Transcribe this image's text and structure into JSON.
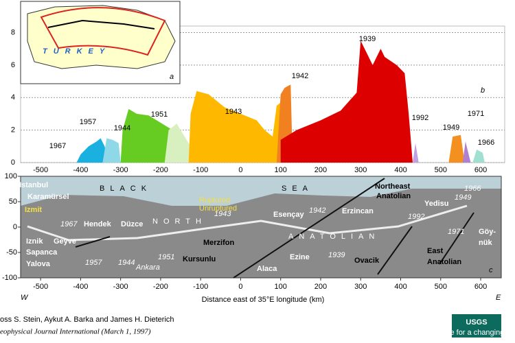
{
  "chart_data": [
    {
      "type": "area",
      "ylim": [
        0,
        8.4
      ],
      "yticks": [
        0,
        2,
        4,
        6,
        8
      ],
      "xlim": [
        -550,
        660
      ],
      "xticks": [
        -500,
        -400,
        -300,
        -200,
        -100,
        0,
        100,
        200,
        300,
        400,
        500,
        600
      ],
      "grid": true,
      "panel_label": "b",
      "series": [
        {
          "name": "1967",
          "color": "#1ab0e0",
          "x": [
            -410,
            -400,
            -380,
            -360,
            -350,
            -340,
            -330
          ],
          "values": [
            0,
            0.5,
            1.0,
            1.3,
            1.5,
            1.0,
            0
          ]
        },
        {
          "name": "1957",
          "color": "#8fd8e8",
          "x": [
            -345,
            -335,
            -320,
            -305,
            -300
          ],
          "values": [
            0,
            1.5,
            1.4,
            1.2,
            0
          ]
        },
        {
          "name": "1944",
          "color": "#66cc22",
          "x": [
            -300,
            -295,
            -280,
            -260,
            -230,
            -210,
            -190,
            -170,
            -140,
            -130
          ],
          "values": [
            0,
            2.0,
            3.3,
            3.0,
            2.9,
            2.6,
            2.3,
            2.0,
            1.3,
            0
          ]
        },
        {
          "name": "1951",
          "color": "#d8f0c0",
          "x": [
            -190,
            -180,
            -160,
            -140,
            -125,
            -120
          ],
          "values": [
            0,
            2.0,
            2.4,
            1.6,
            1.0,
            0
          ]
        },
        {
          "name": "1943",
          "color": "#ffb800",
          "x": [
            -130,
            -125,
            -110,
            -80,
            -40,
            0,
            40,
            60,
            80,
            90,
            100,
            100
          ],
          "values": [
            0,
            3.0,
            4.4,
            4.2,
            3.4,
            3.0,
            2.6,
            2.0,
            1.6,
            3.5,
            3.7,
            0
          ]
        },
        {
          "name": "1942",
          "color": "#f08020",
          "x": [
            90,
            100,
            110,
            125,
            130
          ],
          "values": [
            0,
            4.2,
            4.6,
            4.8,
            0
          ]
        },
        {
          "name": "1939",
          "color": "#dd0000",
          "x": [
            100,
            100,
            140,
            200,
            250,
            290,
            300,
            330,
            350,
            360,
            390,
            410,
            420,
            430
          ],
          "values": [
            0,
            1.4,
            2.0,
            2.6,
            3.2,
            4.3,
            7.5,
            6.0,
            7.0,
            6.5,
            6.0,
            5.5,
            3.0,
            0
          ]
        },
        {
          "name": "1992",
          "color": "#c0a0e0",
          "x": [
            430,
            437,
            445
          ],
          "values": [
            0,
            1.2,
            0
          ]
        },
        {
          "name": "1949",
          "color": "#f39020",
          "x": [
            520,
            530,
            550,
            560
          ],
          "values": [
            0,
            1.6,
            1.7,
            0
          ]
        },
        {
          "name": "1971",
          "color": "#b080d0",
          "x": [
            555,
            562,
            575
          ],
          "values": [
            0,
            1.3,
            0
          ]
        },
        {
          "name": "1966",
          "color": "#a0e0d0",
          "x": [
            580,
            590,
            605,
            610
          ],
          "values": [
            0,
            0.8,
            0.6,
            0
          ]
        }
      ]
    },
    {
      "type": "map",
      "xlim": [
        -550,
        660
      ],
      "ylim": [
        -100,
        100
      ],
      "yticks": [
        100,
        50,
        0,
        -50,
        -100
      ],
      "xticks": [
        -500,
        -400,
        -300,
        -200,
        -100,
        0,
        100,
        200,
        300,
        400,
        500,
        600
      ],
      "xlabel": "Distance east of 35°E longitude (km)",
      "west": "W",
      "east": "E",
      "labels": [
        "Istanbul",
        "Karamürsel",
        "Izmit",
        "1967",
        "Hendek",
        "Düzce",
        "NORTH",
        "1943",
        "Esençay",
        "1942",
        "Erzincan",
        "1992",
        "ANATOLIAN",
        "Northeast",
        "Anatolian",
        "Yedisu",
        "1966",
        "1949",
        "1971",
        "Göy-",
        "nük",
        "Iznik",
        "Geyve",
        "Sapanca",
        "Yalova",
        "1957",
        "1944",
        "Ankara",
        "1951",
        "Kursunlu",
        "Merzifon",
        "Alaca",
        "Ezine",
        "1939",
        "Ovacik",
        "East",
        "Anatolian",
        "BLACK",
        "SEA",
        "Ruptured",
        "Unruptured",
        "c"
      ]
    }
  ],
  "inset": {
    "country": "TURKEY",
    "panel_label": "a"
  },
  "credits": {
    "authors": "oss S. Stein, Aykut A. Barka and James H. Dieterich",
    "journal": "eophysical Journal International (March 1, 1997)",
    "logo": "USGS",
    "logo_tagline": "science for a changing world"
  }
}
